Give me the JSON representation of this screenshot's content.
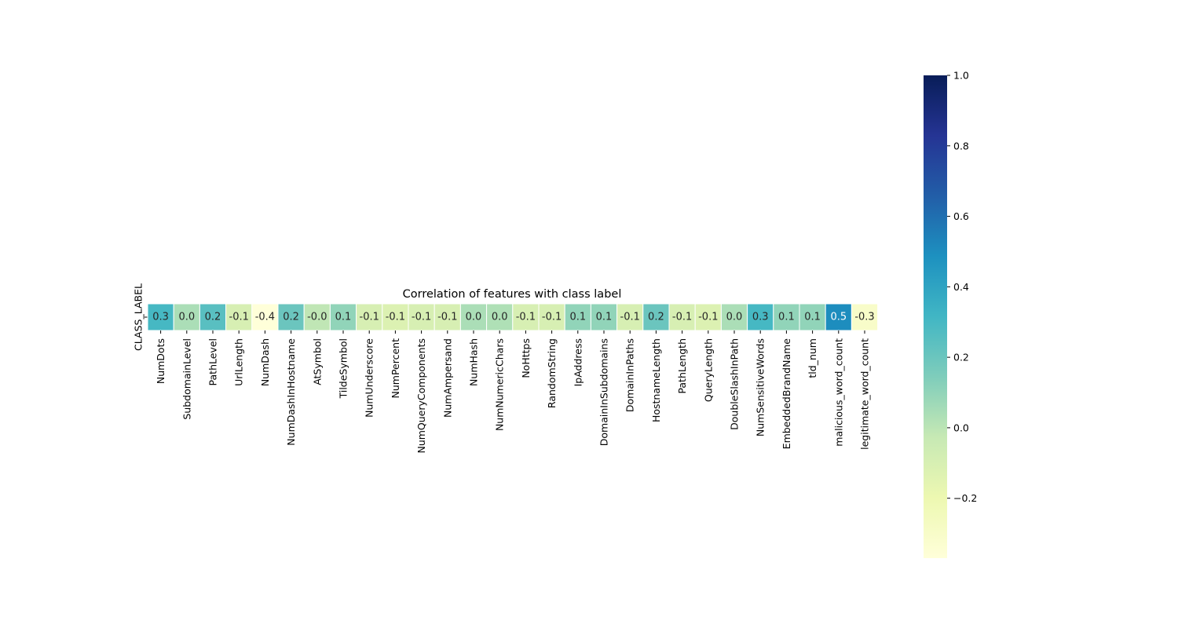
{
  "chart_data": {
    "type": "heatmap",
    "title": "Correlation of features with class label",
    "row_labels": [
      "CLASS_LABEL"
    ],
    "columns": [
      "NumDots",
      "SubdomainLevel",
      "PathLevel",
      "UrlLength",
      "NumDash",
      "NumDashInHostname",
      "AtSymbol",
      "TildeSymbol",
      "NumUnderscore",
      "NumPercent",
      "NumQueryComponents",
      "NumAmpersand",
      "NumHash",
      "NumNumericChars",
      "NoHttps",
      "RandomString",
      "IpAddress",
      "DomainInSubdomains",
      "DomainInPaths",
      "HostnameLength",
      "PathLength",
      "QueryLength",
      "DoubleSlashInPath",
      "NumSensitiveWords",
      "EmbeddedBrandName",
      "tld_num",
      "malicious_word_count",
      "legitimate_word_count"
    ],
    "values": [
      [
        0.3,
        0.04,
        0.25,
        -0.1,
        -0.37,
        0.2,
        -0.01,
        0.1,
        -0.1,
        -0.12,
        -0.1,
        -0.1,
        0.04,
        0.03,
        -0.1,
        -0.1,
        0.1,
        0.1,
        -0.1,
        0.2,
        -0.1,
        -0.12,
        0.04,
        0.3,
        0.1,
        0.1,
        0.5,
        -0.3
      ]
    ],
    "annotations": [
      [
        "0.3",
        "0.0",
        "0.2",
        "-0.1",
        "-0.4",
        "0.2",
        "-0.0",
        "0.1",
        "-0.1",
        "-0.1",
        "-0.1",
        "-0.1",
        "0.0",
        "0.0",
        "-0.1",
        "-0.1",
        "0.1",
        "0.1",
        "-0.1",
        "0.2",
        "-0.1",
        "-0.1",
        "0.0",
        "0.3",
        "0.1",
        "0.1",
        "0.5",
        "-0.3"
      ]
    ],
    "colormap": "YlGnBu",
    "vmin": -0.37,
    "vmax": 1.0,
    "colorbar_ticks": [
      "1.0",
      "0.8",
      "0.6",
      "0.4",
      "0.2",
      "0.0",
      "−0.2"
    ],
    "colorbar_tick_values": [
      1.0,
      0.8,
      0.6,
      0.4,
      0.2,
      0.0,
      -0.2
    ],
    "grid": false
  }
}
